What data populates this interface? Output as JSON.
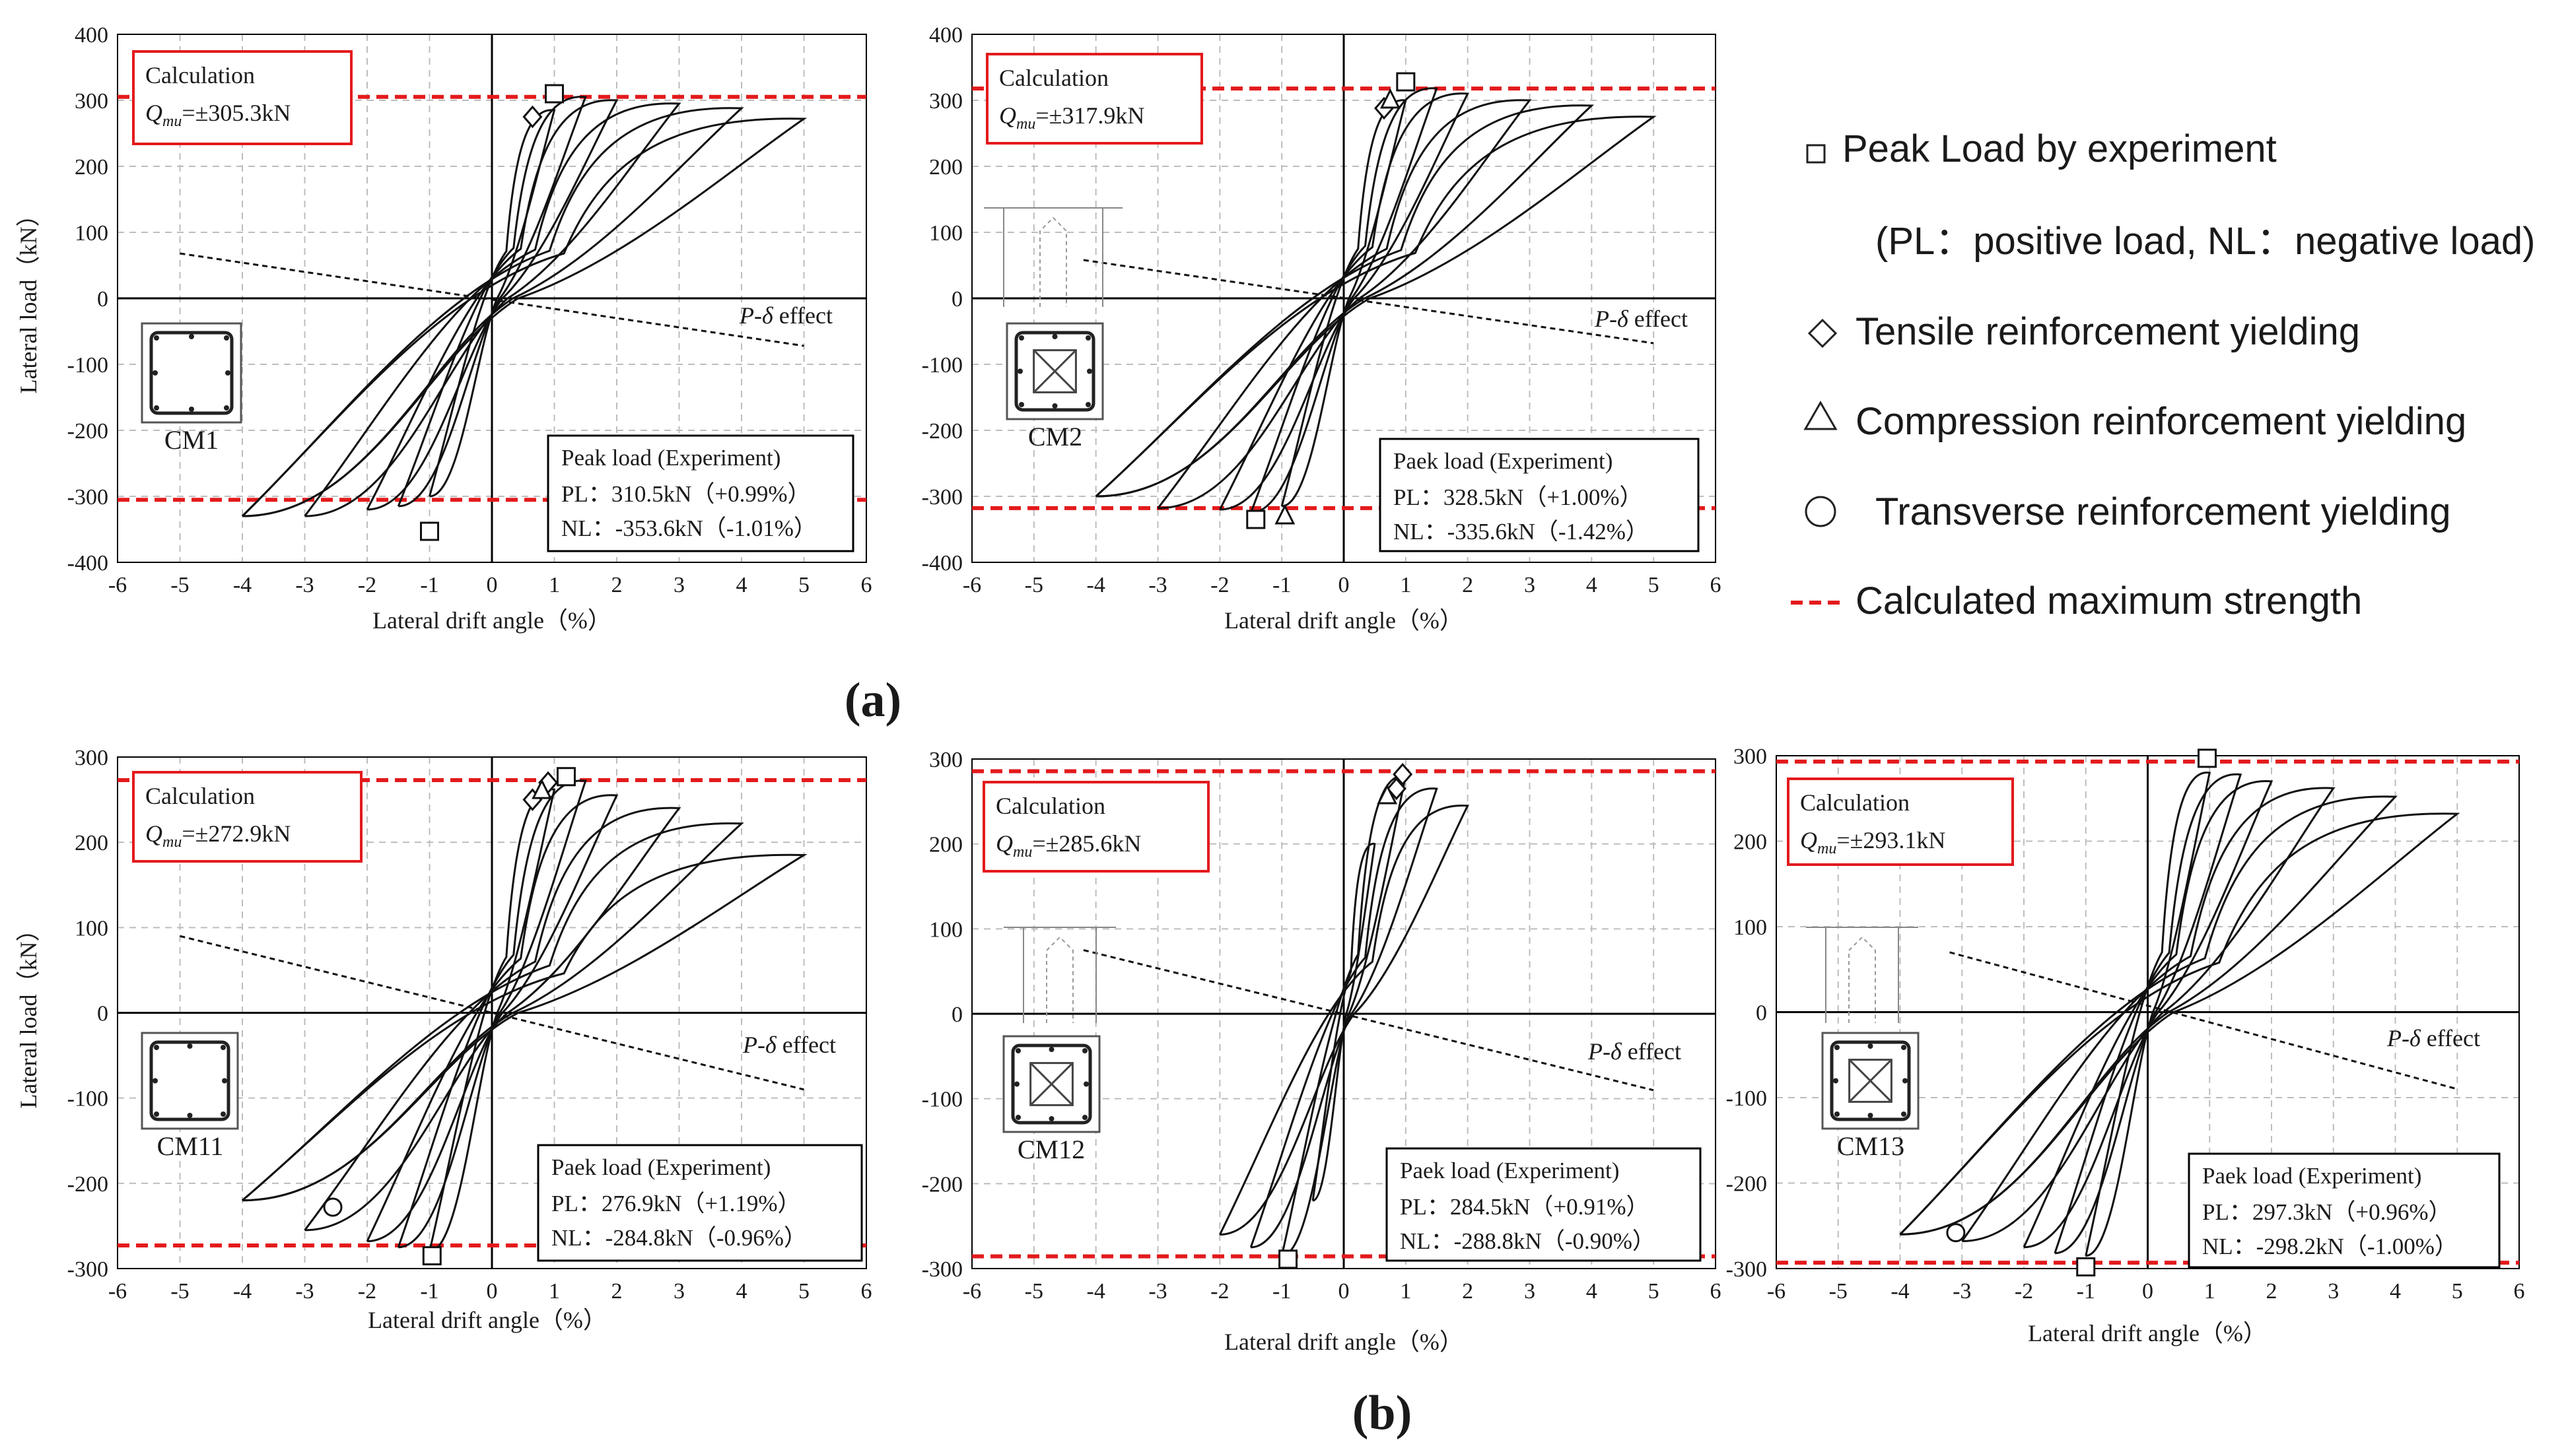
{
  "colors": {
    "curve": "#111111",
    "calc_line": "#e31a1c",
    "grid": "#bdbdbd",
    "axis": "#000000",
    "pdelta": "#111111",
    "box_red": "#e31a1c",
    "box_black": "#000000"
  },
  "labels": {
    "group_a": "(a)",
    "group_b": "(b)",
    "pdelta_prefix": "P-δ",
    "pdelta_suffix": " effect",
    "calc_title": "Calculation",
    "calc_q": "Q",
    "calc_sub": "mu"
  },
  "legend": {
    "items": [
      {
        "symbol": "square",
        "text": "Peak Load by experiment"
      },
      {
        "symbol": "none",
        "text": "(PL：positive load, NL：negative load)"
      },
      {
        "symbol": "diamond",
        "text": "Tensile reinforcement yielding"
      },
      {
        "symbol": "triangle",
        "text": "Compression reinforcement yielding"
      },
      {
        "symbol": "circle",
        "text": "Transverse reinforcement yielding"
      },
      {
        "symbol": "dashed-red",
        "text": "Calculated maximum strength"
      }
    ]
  },
  "chart_data": [
    {
      "id": "CM1",
      "type": "line",
      "specimen": "CM1",
      "column_icon": false,
      "xlabel": "Lateral drift angle（%）",
      "ylabel": "Lateral load（kN）",
      "xlim": [
        -6,
        6
      ],
      "ylim": [
        -400,
        400
      ],
      "grid": true,
      "xticks": [
        "-6",
        "-5",
        "-4",
        "-3",
        "-2",
        "-1",
        "0",
        "1",
        "2",
        "3",
        "4",
        "5",
        "6"
      ],
      "yticks": [
        "-400",
        "-300",
        "-200",
        "-100",
        "0",
        "100",
        "200",
        "300",
        "400"
      ],
      "calc_value": "=±305.3kN",
      "calc_strength": 305.3,
      "peak_title": "Peak load (Experiment)",
      "pl_text": "PL：310.5kN（+0.99%）",
      "nl_text": "NL：-353.6kN（-1.01%）",
      "max_drift": [
        1,
        1.5,
        2,
        3,
        4,
        5
      ],
      "pos_peak": [
        285,
        305,
        300,
        295,
        288,
        272
      ],
      "min_drift": [
        -1,
        -1.5,
        -2,
        -3,
        -4
      ],
      "neg_peak": [
        -300,
        -315,
        -320,
        -330,
        -330
      ],
      "pdelta_line": [
        [
          -5,
          68
        ],
        [
          5,
          -72
        ]
      ],
      "markers": [
        {
          "type": "square",
          "x": 1.0,
          "y": 310
        },
        {
          "type": "square",
          "x": -1.0,
          "y": -353
        },
        {
          "type": "diamond",
          "x": 0.65,
          "y": 275
        }
      ]
    },
    {
      "id": "CM2",
      "type": "line",
      "specimen": "CM2",
      "column_icon": true,
      "xlabel": "Lateral drift angle（%）",
      "ylabel": "",
      "xlim": [
        -6,
        6
      ],
      "ylim": [
        -400,
        400
      ],
      "grid": true,
      "xticks": [
        "-6",
        "-5",
        "-4",
        "-3",
        "-2",
        "-1",
        "0",
        "1",
        "2",
        "3",
        "4",
        "5",
        "6"
      ],
      "yticks": [
        "-400",
        "-300",
        "-200",
        "-100",
        "0",
        "100",
        "200",
        "300",
        "400"
      ],
      "calc_value": "=±317.9kN",
      "calc_strength": 317.9,
      "peak_title": "Paek load (Experiment)",
      "pl_text": "PL：328.5kN（+1.00%）",
      "nl_text": "NL：-335.6kN（-1.42%）",
      "max_drift": [
        1,
        1.5,
        2,
        3,
        4,
        5
      ],
      "pos_peak": [
        300,
        318,
        310,
        300,
        292,
        275
      ],
      "min_drift": [
        -1,
        -1.5,
        -2,
        -3,
        -4
      ],
      "neg_peak": [
        -315,
        -325,
        -320,
        -318,
        -300
      ],
      "pdelta_line": [
        [
          -4.2,
          58
        ],
        [
          5,
          -68
        ]
      ],
      "markers": [
        {
          "type": "square",
          "x": 1.0,
          "y": 328
        },
        {
          "type": "square",
          "x": -1.42,
          "y": -335
        },
        {
          "type": "diamond",
          "x": 0.65,
          "y": 288
        },
        {
          "type": "triangle",
          "x": 0.75,
          "y": 302
        },
        {
          "type": "triangle",
          "x": -0.95,
          "y": -328
        }
      ]
    },
    {
      "id": "CM11",
      "type": "line",
      "specimen": "CM11",
      "column_icon": false,
      "xlabel": "Lateral drift angle（%）",
      "ylabel": "Lateral load（kN）",
      "xlim": [
        -6,
        6
      ],
      "ylim": [
        -300,
        300
      ],
      "grid": true,
      "xticks": [
        "-6",
        "-5",
        "-4",
        "-3",
        "-2",
        "-1",
        "0",
        "1",
        "2",
        "3",
        "4",
        "5",
        "6"
      ],
      "yticks": [
        "-300",
        "-200",
        "-100",
        "0",
        "100",
        "200",
        "300"
      ],
      "calc_value": "=±272.9kN",
      "calc_strength": 272.9,
      "peak_title": "Paek load (Experiment)",
      "pl_text": "PL：276.9kN（+1.19%）",
      "nl_text": "NL：-284.8kN（-0.96%）",
      "max_drift": [
        1,
        1.5,
        2,
        3,
        4,
        5
      ],
      "pos_peak": [
        262,
        272,
        255,
        240,
        222,
        185
      ],
      "min_drift": [
        -1,
        -1.5,
        -2,
        -3,
        -4
      ],
      "neg_peak": [
        -280,
        -275,
        -268,
        -255,
        -220
      ],
      "pdelta_line": [
        [
          -5,
          90
        ],
        [
          5,
          -90
        ]
      ],
      "markers": [
        {
          "type": "square",
          "x": 1.19,
          "y": 277
        },
        {
          "type": "square",
          "x": -0.96,
          "y": -285
        },
        {
          "type": "diamond",
          "x": 0.9,
          "y": 270
        },
        {
          "type": "diamond",
          "x": 0.65,
          "y": 250
        },
        {
          "type": "triangle",
          "x": 0.8,
          "y": 262
        },
        {
          "type": "circle",
          "x": -2.55,
          "y": -228
        }
      ]
    },
    {
      "id": "CM12",
      "type": "line",
      "specimen": "CM12",
      "column_icon": true,
      "xlabel": "Lateral drift angle（%）",
      "ylabel": "",
      "xlim": [
        -6,
        6
      ],
      "ylim": [
        -300,
        300
      ],
      "grid": true,
      "xticks": [
        "-6",
        "-5",
        "-4",
        "-3",
        "-2",
        "-1",
        "0",
        "1",
        "2",
        "3",
        "4",
        "5",
        "6"
      ],
      "yticks": [
        "-300",
        "-200",
        "-100",
        "0",
        "100",
        "200",
        "300"
      ],
      "calc_value": "=±285.6kN",
      "calc_strength": 285.6,
      "peak_title": "Paek load (Experiment)",
      "pl_text": "PL：284.5kN（+0.91%）",
      "nl_text": "NL：-288.8kN（-0.90%）",
      "max_drift": [
        0.5,
        1,
        1.5,
        2
      ],
      "pos_peak": [
        200,
        280,
        265,
        245
      ],
      "min_drift": [
        -0.5,
        -1,
        -1.5,
        -2
      ],
      "neg_peak": [
        -220,
        -285,
        -275,
        -260
      ],
      "pdelta_line": [
        [
          -4.2,
          75
        ],
        [
          5,
          -90
        ]
      ],
      "markers": [
        {
          "type": "square",
          "x": -0.9,
          "y": -289
        },
        {
          "type": "diamond",
          "x": 0.95,
          "y": 282
        },
        {
          "type": "diamond",
          "x": 0.85,
          "y": 265
        },
        {
          "type": "triangle",
          "x": 0.7,
          "y": 258
        }
      ]
    },
    {
      "id": "CM13",
      "type": "line",
      "specimen": "CM13",
      "column_icon": true,
      "xlabel": "Lateral drift angle（%）",
      "ylabel": "",
      "xlim": [
        -6,
        6
      ],
      "ylim": [
        -300,
        300
      ],
      "grid": true,
      "xticks": [
        "-6",
        "-5",
        "-4",
        "-3",
        "-2",
        "-1",
        "0",
        "1",
        "2",
        "3",
        "4",
        "5",
        "6"
      ],
      "yticks": [
        "-300",
        "-200",
        "-100",
        "0",
        "100",
        "200",
        "300"
      ],
      "calc_value": "=±293.1kN",
      "calc_strength": 293.1,
      "peak_title": "Paek load (Experiment)",
      "pl_text": "PL：297.3kN（+0.96%）",
      "nl_text": "NL：-298.2kN（-1.00%）",
      "max_drift": [
        1,
        1.5,
        2,
        3,
        4,
        5
      ],
      "pos_peak": [
        280,
        278,
        270,
        262,
        252,
        232
      ],
      "min_drift": [
        -1,
        -1.5,
        -2,
        -3,
        -4
      ],
      "neg_peak": [
        -285,
        -282,
        -275,
        -268,
        -260
      ],
      "pdelta_line": [
        [
          -3.2,
          70
        ],
        [
          5,
          -90
        ]
      ],
      "markers": [
        {
          "type": "square",
          "x": 0.96,
          "y": 297
        },
        {
          "type": "square",
          "x": -1.0,
          "y": -298
        },
        {
          "type": "circle",
          "x": -3.1,
          "y": -258
        }
      ]
    }
  ]
}
